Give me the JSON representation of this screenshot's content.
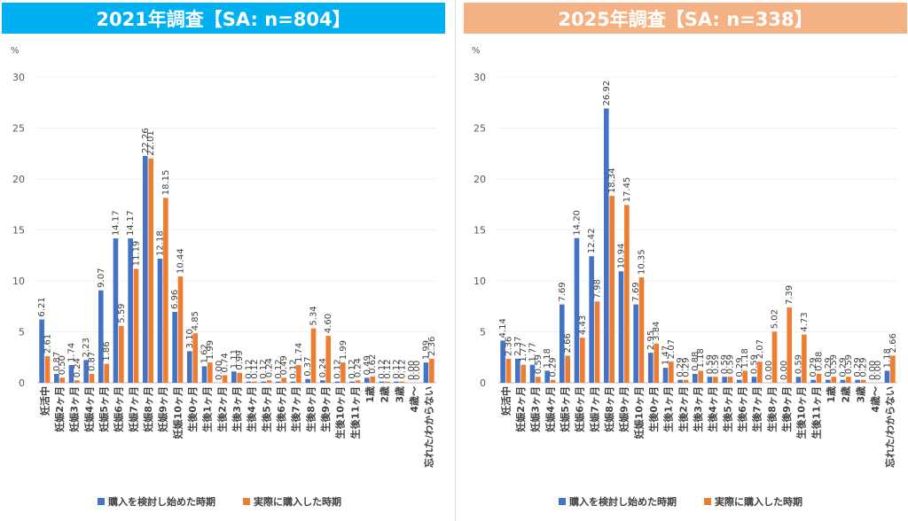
{
  "titles": {
    "left": "2021年調査【SA: n=804】",
    "right": "2025年調査【SA: n=338】"
  },
  "chart_data": [
    {
      "type": "bar",
      "title": "2021年調査【SA: n=804】",
      "ylabel": "%",
      "xlabel": "",
      "ylim": [
        0,
        30
      ],
      "yticks": [
        0,
        5,
        10,
        15,
        20,
        25,
        30
      ],
      "categories": [
        "妊活中",
        "妊娠2ヶ月",
        "妊娠3ヶ月",
        "妊娠4ヶ月",
        "妊娠5ヶ月",
        "妊娠6ヶ月",
        "妊娠7ヶ月",
        "妊娠8ヶ月",
        "妊娠9ヶ月",
        "妊娠10ヶ月",
        "生後0ヶ月",
        "生後1ヶ月",
        "生後2ヶ月",
        "生後3ヶ月",
        "生後4ヶ月",
        "生後5ヶ月",
        "生後6ヶ月",
        "生後7ヶ月",
        "生後8ヶ月",
        "生後9ヶ月",
        "生後10ヶ月",
        "生後11ヶ月",
        "1歳",
        "2歳",
        "3歳",
        "4歳～",
        "忘れた/わからない"
      ],
      "series": [
        {
          "name": "購入を検討し始めた時期",
          "color": "#4472c4",
          "values": [
            6.21,
            0.87,
            1.74,
            2.23,
            9.07,
            14.17,
            14.17,
            22.26,
            12.18,
            6.96,
            3.1,
            1.62,
            0.0,
            1.11,
            0.12,
            0.12,
            0.12,
            0.12,
            0.37,
            0.24,
            0.12,
            0.12,
            0.49,
            0.12,
            0.12,
            0.0,
            1.99
          ],
          "labels": [
            "6.21",
            "0.87",
            "1.74",
            "2.23",
            "9.07",
            "14.17",
            "14.17",
            "22.26",
            "12.18",
            "6.96",
            "3.10",
            "1.62",
            "0.00",
            "1.11",
            "0.12",
            "0.12",
            "0.12",
            "0.12",
            "0.37",
            "0.24",
            "0.12",
            "0.12",
            "0.49",
            "0.12",
            "0.12",
            "0.00",
            "1.99"
          ]
        },
        {
          "name": "実際に購入した時期",
          "color": "#ed7d31",
          "values": [
            2.61,
            0.5,
            0.24,
            0.87,
            1.86,
            5.59,
            11.19,
            22.01,
            18.15,
            10.44,
            4.85,
            1.99,
            0.74,
            0.99,
            0.12,
            0.24,
            0.49,
            1.74,
            5.34,
            4.6,
            1.99,
            0.24,
            0.62,
            0.12,
            0.12,
            0.0,
            2.36
          ],
          "labels": [
            "2.61",
            "0.50",
            "0.24",
            "0.87",
            "1.86",
            "5.59",
            "11.19",
            "22.01",
            "18.15",
            "10.44",
            "4.85",
            "1.99",
            "0.74",
            "0.99",
            "0.12",
            "0.24",
            "0.49",
            "1.74",
            "5.34",
            "4.60",
            "1.99",
            "0.24",
            "0.62",
            "0.12",
            "0.12",
            "0.00",
            "2.36"
          ]
        }
      ],
      "legend": "bottom"
    },
    {
      "type": "bar",
      "title": "2025年調査【SA: n=338】",
      "ylabel": "%",
      "xlabel": "",
      "ylim": [
        0,
        30
      ],
      "yticks": [
        0,
        5,
        10,
        15,
        20,
        25,
        30
      ],
      "categories": [
        "妊活中",
        "妊娠2ヶ月",
        "妊娠3ヶ月",
        "妊娠4ヶ月",
        "妊娠5ヶ月",
        "妊娠6ヶ月",
        "妊娠7ヶ月",
        "妊娠8ヶ月",
        "妊娠9ヶ月",
        "妊娠10ヶ月",
        "生後0ヶ月",
        "生後1ヶ月",
        "生後2ヶ月",
        "生後3ヶ月",
        "生後4ヶ月",
        "生後5ヶ月",
        "生後6ヶ月",
        "生後7ヶ月",
        "生後8ヶ月",
        "生後9ヶ月",
        "生後10ヶ月",
        "生後11ヶ月",
        "1歳",
        "2歳",
        "3歳",
        "4歳～",
        "忘れた/わからない"
      ],
      "series": [
        {
          "name": "購入を検討し始めた時期",
          "color": "#4472c4",
          "values": [
            4.14,
            2.37,
            1.77,
            1.18,
            7.69,
            14.2,
            12.42,
            26.92,
            10.94,
            7.69,
            2.95,
            1.47,
            0.29,
            0.88,
            0.59,
            0.59,
            0.29,
            0.59,
            0.0,
            0.0,
            0.59,
            0.29,
            0.29,
            0.29,
            0.29,
            0.0,
            1.18
          ],
          "labels": [
            "4.14",
            "2.37",
            "1.77",
            "1.18",
            "7.69",
            "14.20",
            "12.42",
            "26.92",
            "10.94",
            "7.69",
            "2.95",
            "1.47",
            "0.29",
            "0.88",
            "0.59",
            "0.59",
            "0.29",
            "0.59",
            "0.00",
            "0.00",
            "0.59",
            "0.29",
            "0.29",
            "0.29",
            "0.29",
            "0.00",
            "1.18"
          ]
        },
        {
          "name": "実際に購入した時期",
          "color": "#ed7d31",
          "values": [
            2.36,
            1.77,
            0.59,
            0.29,
            2.66,
            4.43,
            7.98,
            18.34,
            17.45,
            10.35,
            3.84,
            2.07,
            0.29,
            1.18,
            0.59,
            0.59,
            1.18,
            2.07,
            5.02,
            7.39,
            4.73,
            0.88,
            0.59,
            0.59,
            0.29,
            0.0,
            2.66
          ],
          "labels": [
            "2.36",
            "1.77",
            "0.59",
            "0.29",
            "2.66",
            "4.43",
            "7.98",
            "18.34",
            "17.45",
            "10.35",
            "3.84",
            "2.07",
            "0.29",
            "1.18",
            "0.59",
            "0.59",
            "1.18",
            "2.07",
            "5.02",
            "7.39",
            "4.73",
            "0.88",
            "0.59",
            "0.59",
            "0.29",
            "0.00",
            "2.66"
          ]
        }
      ],
      "legend": "bottom"
    }
  ]
}
